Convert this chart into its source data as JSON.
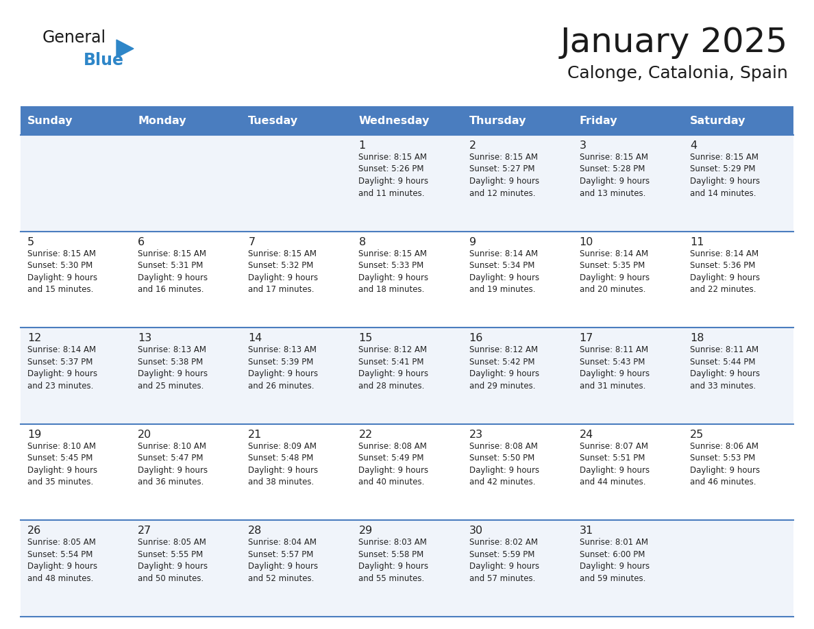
{
  "title": "January 2025",
  "subtitle": "Calonge, Catalonia, Spain",
  "days_of_week": [
    "Sunday",
    "Monday",
    "Tuesday",
    "Wednesday",
    "Thursday",
    "Friday",
    "Saturday"
  ],
  "header_bg": "#4a7dbf",
  "header_text": "#FFFFFF",
  "cell_bg_light": "#f0f4fa",
  "cell_bg_white": "#FFFFFF",
  "cell_text": "#222222",
  "day_num_color": "#222222",
  "border_color": "#4a7dbf",
  "title_color": "#1a1a1a",
  "subtitle_color": "#1a1a1a",
  "logo_general_color": "#1a1a1a",
  "logo_blue_color": "#2e86c8",
  "logo_triangle_color": "#2e86c8",
  "calendar_data": [
    [
      {
        "day": "",
        "info": ""
      },
      {
        "day": "",
        "info": ""
      },
      {
        "day": "",
        "info": ""
      },
      {
        "day": "1",
        "info": "Sunrise: 8:15 AM\nSunset: 5:26 PM\nDaylight: 9 hours\nand 11 minutes."
      },
      {
        "day": "2",
        "info": "Sunrise: 8:15 AM\nSunset: 5:27 PM\nDaylight: 9 hours\nand 12 minutes."
      },
      {
        "day": "3",
        "info": "Sunrise: 8:15 AM\nSunset: 5:28 PM\nDaylight: 9 hours\nand 13 minutes."
      },
      {
        "day": "4",
        "info": "Sunrise: 8:15 AM\nSunset: 5:29 PM\nDaylight: 9 hours\nand 14 minutes."
      }
    ],
    [
      {
        "day": "5",
        "info": "Sunrise: 8:15 AM\nSunset: 5:30 PM\nDaylight: 9 hours\nand 15 minutes."
      },
      {
        "day": "6",
        "info": "Sunrise: 8:15 AM\nSunset: 5:31 PM\nDaylight: 9 hours\nand 16 minutes."
      },
      {
        "day": "7",
        "info": "Sunrise: 8:15 AM\nSunset: 5:32 PM\nDaylight: 9 hours\nand 17 minutes."
      },
      {
        "day": "8",
        "info": "Sunrise: 8:15 AM\nSunset: 5:33 PM\nDaylight: 9 hours\nand 18 minutes."
      },
      {
        "day": "9",
        "info": "Sunrise: 8:14 AM\nSunset: 5:34 PM\nDaylight: 9 hours\nand 19 minutes."
      },
      {
        "day": "10",
        "info": "Sunrise: 8:14 AM\nSunset: 5:35 PM\nDaylight: 9 hours\nand 20 minutes."
      },
      {
        "day": "11",
        "info": "Sunrise: 8:14 AM\nSunset: 5:36 PM\nDaylight: 9 hours\nand 22 minutes."
      }
    ],
    [
      {
        "day": "12",
        "info": "Sunrise: 8:14 AM\nSunset: 5:37 PM\nDaylight: 9 hours\nand 23 minutes."
      },
      {
        "day": "13",
        "info": "Sunrise: 8:13 AM\nSunset: 5:38 PM\nDaylight: 9 hours\nand 25 minutes."
      },
      {
        "day": "14",
        "info": "Sunrise: 8:13 AM\nSunset: 5:39 PM\nDaylight: 9 hours\nand 26 minutes."
      },
      {
        "day": "15",
        "info": "Sunrise: 8:12 AM\nSunset: 5:41 PM\nDaylight: 9 hours\nand 28 minutes."
      },
      {
        "day": "16",
        "info": "Sunrise: 8:12 AM\nSunset: 5:42 PM\nDaylight: 9 hours\nand 29 minutes."
      },
      {
        "day": "17",
        "info": "Sunrise: 8:11 AM\nSunset: 5:43 PM\nDaylight: 9 hours\nand 31 minutes."
      },
      {
        "day": "18",
        "info": "Sunrise: 8:11 AM\nSunset: 5:44 PM\nDaylight: 9 hours\nand 33 minutes."
      }
    ],
    [
      {
        "day": "19",
        "info": "Sunrise: 8:10 AM\nSunset: 5:45 PM\nDaylight: 9 hours\nand 35 minutes."
      },
      {
        "day": "20",
        "info": "Sunrise: 8:10 AM\nSunset: 5:47 PM\nDaylight: 9 hours\nand 36 minutes."
      },
      {
        "day": "21",
        "info": "Sunrise: 8:09 AM\nSunset: 5:48 PM\nDaylight: 9 hours\nand 38 minutes."
      },
      {
        "day": "22",
        "info": "Sunrise: 8:08 AM\nSunset: 5:49 PM\nDaylight: 9 hours\nand 40 minutes."
      },
      {
        "day": "23",
        "info": "Sunrise: 8:08 AM\nSunset: 5:50 PM\nDaylight: 9 hours\nand 42 minutes."
      },
      {
        "day": "24",
        "info": "Sunrise: 8:07 AM\nSunset: 5:51 PM\nDaylight: 9 hours\nand 44 minutes."
      },
      {
        "day": "25",
        "info": "Sunrise: 8:06 AM\nSunset: 5:53 PM\nDaylight: 9 hours\nand 46 minutes."
      }
    ],
    [
      {
        "day": "26",
        "info": "Sunrise: 8:05 AM\nSunset: 5:54 PM\nDaylight: 9 hours\nand 48 minutes."
      },
      {
        "day": "27",
        "info": "Sunrise: 8:05 AM\nSunset: 5:55 PM\nDaylight: 9 hours\nand 50 minutes."
      },
      {
        "day": "28",
        "info": "Sunrise: 8:04 AM\nSunset: 5:57 PM\nDaylight: 9 hours\nand 52 minutes."
      },
      {
        "day": "29",
        "info": "Sunrise: 8:03 AM\nSunset: 5:58 PM\nDaylight: 9 hours\nand 55 minutes."
      },
      {
        "day": "30",
        "info": "Sunrise: 8:02 AM\nSunset: 5:59 PM\nDaylight: 9 hours\nand 57 minutes."
      },
      {
        "day": "31",
        "info": "Sunrise: 8:01 AM\nSunset: 6:00 PM\nDaylight: 9 hours\nand 59 minutes."
      },
      {
        "day": "",
        "info": ""
      }
    ]
  ],
  "fig_width": 11.88,
  "fig_height": 9.18,
  "dpi": 100
}
